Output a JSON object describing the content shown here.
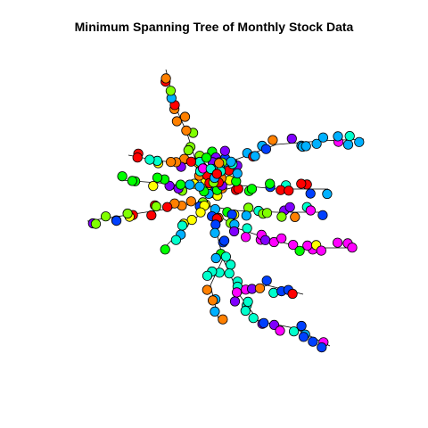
{
  "title": "Minimum Spanning Tree of Monthly Stock Data",
  "palette": {
    "red": "#FF0000",
    "orange": "#FF8000",
    "yellow": "#FFFF00",
    "lime": "#80FF00",
    "green": "#00FF00",
    "cyan": "#00FFCC",
    "sky": "#00B0FF",
    "blue": "#0040FF",
    "violet": "#8000FF",
    "magenta": "#FF00FF"
  }
}
